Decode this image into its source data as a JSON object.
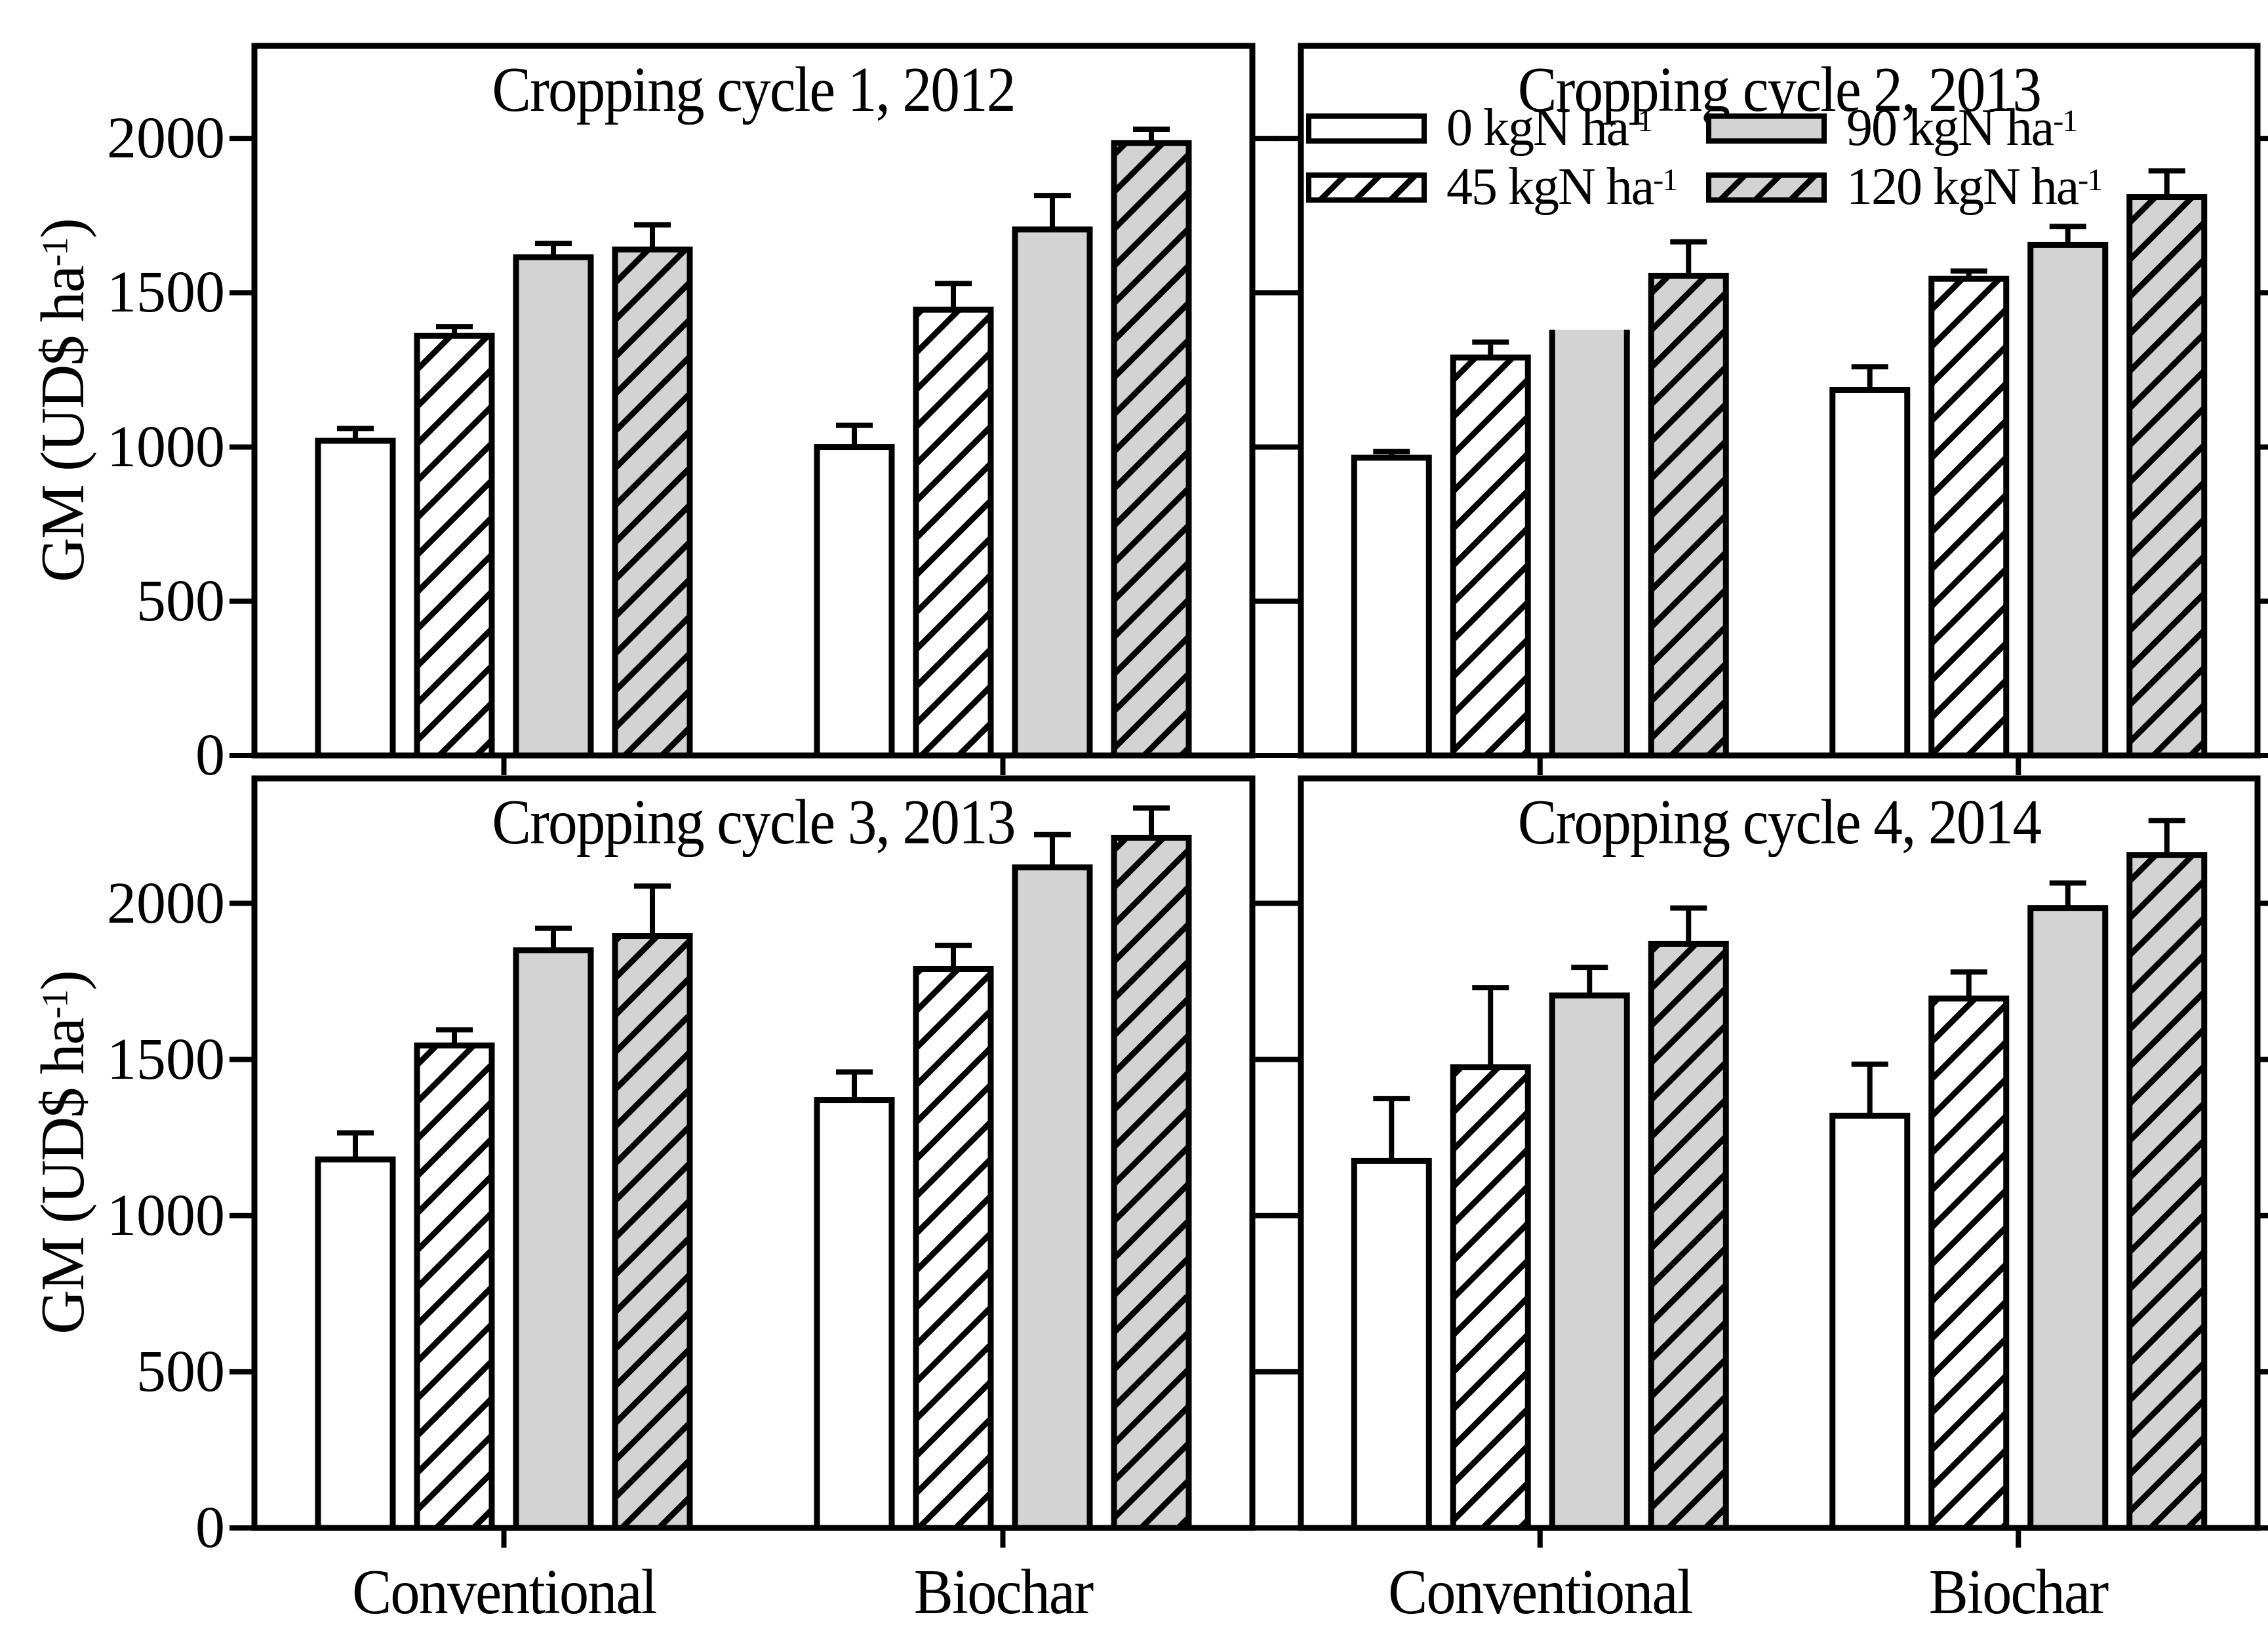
{
  "figure": {
    "background": "#ffffff",
    "y_axis_label": {
      "pre": "GM (UD$ ha",
      "sup": "-1",
      "post": ")"
    },
    "colors": {
      "bar_white": "#ffffff",
      "bar_gray": "#d3d3d3",
      "line": "#000000"
    },
    "legend": {
      "location": "top-right panel, upper left",
      "items": [
        {
          "fill": "white",
          "label_pre": "0 kgN ha",
          "label_sup": "-1"
        },
        {
          "fill": "white-hatched",
          "label_pre": "45 kgN ha",
          "label_sup": "-1"
        },
        {
          "fill": "gray",
          "label_pre": "90 kgN ha",
          "label_sup": "-1"
        },
        {
          "fill": "gray-hatched",
          "label_pre": "120 kgN ha",
          "label_sup": "-1"
        }
      ]
    }
  },
  "chart_data": [
    {
      "type": "bar",
      "title": "Cropping cycle 1, 2012",
      "ylabel": "GM (UD$ ha-1)",
      "groups": [
        "Conventional",
        "Biochar"
      ],
      "series": [
        {
          "name": "0 kgN ha-1",
          "fill": "white",
          "values": [
            1020,
            1000
          ],
          "errors": [
            40,
            70
          ]
        },
        {
          "name": "45 kgN ha-1",
          "fill": "white-hatched",
          "values": [
            1360,
            1445
          ],
          "errors": [
            30,
            85
          ]
        },
        {
          "name": "90 kgN ha-1",
          "fill": "gray",
          "values": [
            1615,
            1705
          ],
          "errors": [
            45,
            110
          ]
        },
        {
          "name": "120 kgN ha-1",
          "fill": "gray-hatched",
          "values": [
            1640,
            1985
          ],
          "errors": [
            80,
            45
          ]
        }
      ],
      "error_bars": "upper",
      "ylim": [
        0,
        2300
      ],
      "yticks": [
        0,
        500,
        1000,
        1500,
        2000
      ],
      "grid": false
    },
    {
      "type": "bar",
      "title": "Cropping cycle 2, 2013",
      "ylabel": "GM (UD$ ha-1)",
      "groups": [
        "Conventional",
        "Biochar"
      ],
      "series": [
        {
          "name": "0 kgN ha-1",
          "fill": "white",
          "values": [
            965,
            1185
          ],
          "errors": [
            20,
            75
          ]
        },
        {
          "name": "45 kgN ha-1",
          "fill": "white-hatched",
          "values": [
            1290,
            1545
          ],
          "errors": [
            50,
            25
          ]
        },
        {
          "name": "90 kgN ha-1",
          "fill": "gray",
          "values": [
            1380,
            1655
          ],
          "errors": [
            0,
            60
          ]
        },
        {
          "name": "120 kgN ha-1",
          "fill": "gray-hatched",
          "values": [
            1555,
            1810
          ],
          "errors": [
            110,
            85
          ]
        }
      ],
      "no_top_border": {
        "series": 2,
        "group": 0
      },
      "legend_in_panel": true,
      "error_bars": "upper",
      "ylim": [
        0,
        2300
      ],
      "yticks": [
        0,
        500,
        1000,
        1500,
        2000
      ],
      "grid": false
    },
    {
      "type": "bar",
      "title": "Cropping cycle 3, 2013",
      "ylabel": "GM (UD$ ha-1)",
      "groups": [
        "Conventional",
        "Biochar"
      ],
      "series": [
        {
          "name": "0 kgN ha-1",
          "fill": "white",
          "values": [
            1180,
            1370
          ],
          "errors": [
            85,
            90
          ]
        },
        {
          "name": "45 kgN ha-1",
          "fill": "white-hatched",
          "values": [
            1545,
            1790
          ],
          "errors": [
            50,
            75
          ]
        },
        {
          "name": "90 kgN ha-1",
          "fill": "gray",
          "values": [
            1850,
            2115
          ],
          "errors": [
            70,
            105
          ]
        },
        {
          "name": "120 kgN ha-1",
          "fill": "gray-hatched",
          "values": [
            1895,
            2210
          ],
          "errors": [
            160,
            95
          ]
        }
      ],
      "error_bars": "upper",
      "ylim": [
        0,
        2400
      ],
      "yticks": [
        0,
        500,
        1000,
        1500,
        2000
      ],
      "grid": false
    },
    {
      "type": "bar",
      "title": "Cropping cycle 4, 2014",
      "ylabel": "GM (UD$ ha-1)",
      "groups": [
        "Conventional",
        "Biochar"
      ],
      "series": [
        {
          "name": "0 kgN ha-1",
          "fill": "white",
          "values": [
            1175,
            1320
          ],
          "errors": [
            200,
            165
          ]
        },
        {
          "name": "45 kgN ha-1",
          "fill": "white-hatched",
          "values": [
            1475,
            1695
          ],
          "errors": [
            255,
            85
          ]
        },
        {
          "name": "90 kgN ha-1",
          "fill": "gray",
          "values": [
            1705,
            1985
          ],
          "errors": [
            90,
            80
          ]
        },
        {
          "name": "120 kgN ha-1",
          "fill": "gray-hatched",
          "values": [
            1870,
            2155
          ],
          "errors": [
            115,
            110
          ]
        }
      ],
      "error_bars": "upper",
      "ylim": [
        0,
        2400
      ],
      "yticks": [
        0,
        500,
        1000,
        1500,
        2000
      ],
      "grid": false
    }
  ]
}
